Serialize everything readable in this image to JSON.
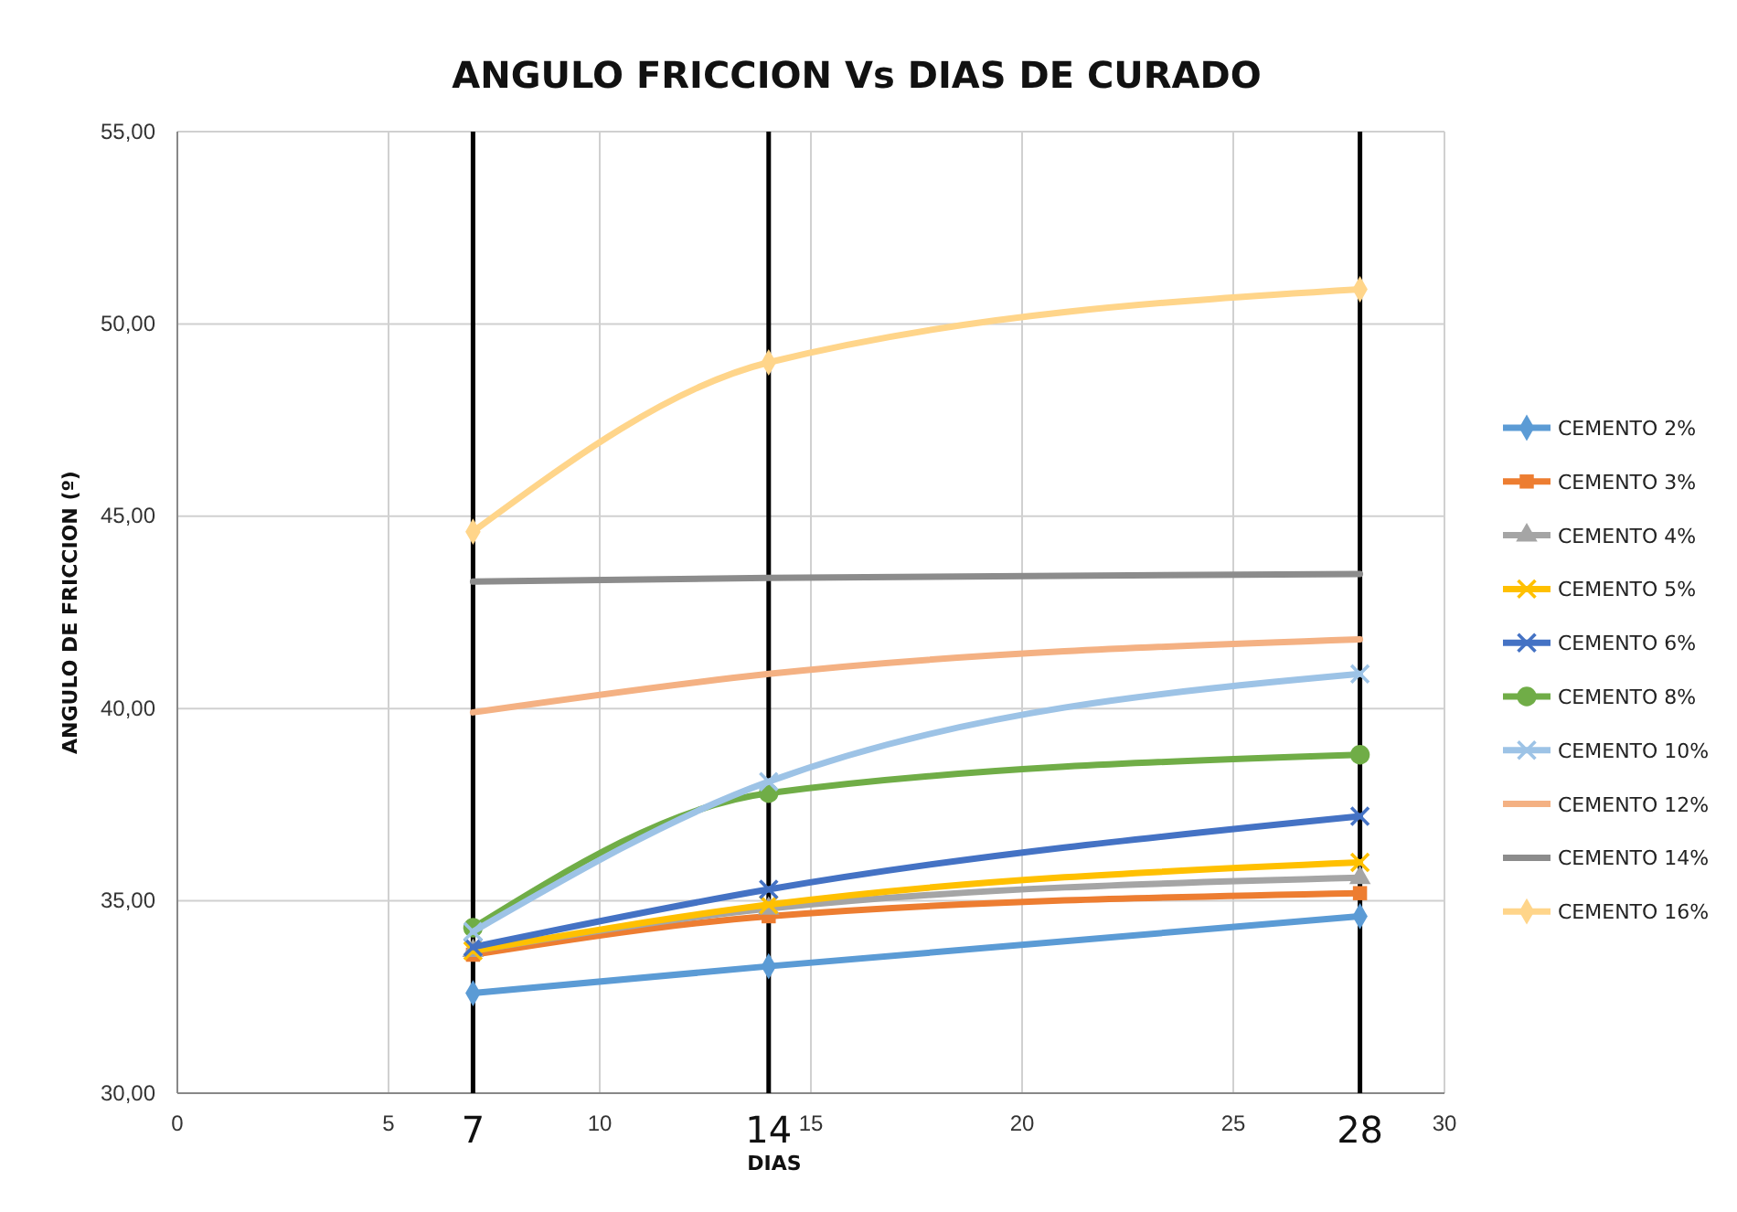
{
  "chart_data": {
    "type": "line",
    "title": "ANGULO FRICCION Vs DIAS DE CURADO",
    "xlabel": "DIAS",
    "ylabel": "ANGULO DE FRICCION (º)",
    "x": [
      7,
      14,
      28
    ],
    "series": [
      {
        "name": "CEMENTO 2%",
        "color": "#5b9bd5",
        "marker": "diamond",
        "values": [
          32.6,
          33.3,
          34.6
        ]
      },
      {
        "name": "CEMENTO 3%",
        "color": "#ed7d31",
        "marker": "square",
        "values": [
          33.6,
          34.6,
          35.2
        ]
      },
      {
        "name": "CEMENTO 4%",
        "color": "#a5a5a5",
        "marker": "triangle",
        "values": [
          33.7,
          34.8,
          35.6
        ]
      },
      {
        "name": "CEMENTO 5%",
        "color": "#ffc000",
        "marker": "cross",
        "values": [
          33.7,
          34.9,
          36.0
        ]
      },
      {
        "name": "CEMENTO 6%",
        "color": "#4472c4",
        "marker": "cross",
        "values": [
          33.8,
          35.3,
          37.2
        ]
      },
      {
        "name": "CEMENTO 8%",
        "color": "#70ad47",
        "marker": "circle",
        "values": [
          34.3,
          37.8,
          38.8
        ]
      },
      {
        "name": "CEMENTO 10%",
        "color": "#9dc3e6",
        "marker": "cross",
        "values": [
          34.2,
          38.1,
          40.9
        ]
      },
      {
        "name": "CEMENTO 12%",
        "color": "#f4b183",
        "marker": "none",
        "values": [
          39.9,
          40.9,
          41.8
        ]
      },
      {
        "name": "CEMENTO 14%",
        "color": "#8c8c8c",
        "marker": "none",
        "values": [
          43.3,
          43.4,
          43.5
        ]
      },
      {
        "name": "CEMENTO 16%",
        "color": "#ffd58a",
        "marker": "diamond",
        "values": [
          44.6,
          49.0,
          50.9
        ]
      }
    ],
    "xlim": [
      0,
      30
    ],
    "xticks": [
      0,
      5,
      10,
      15,
      20,
      25,
      30
    ],
    "ylim": [
      30,
      55
    ],
    "yticks": [
      {
        "value": 30,
        "label": "30,00"
      },
      {
        "value": 35,
        "label": "35,00"
      },
      {
        "value": 40,
        "label": "40,00"
      },
      {
        "value": 45,
        "label": "45,00"
      },
      {
        "value": 50,
        "label": "50,00"
      },
      {
        "value": 55,
        "label": "55,00"
      }
    ],
    "ref_lines": [
      {
        "axis": "x",
        "value": 7,
        "label": "7",
        "color": "#000000"
      },
      {
        "axis": "x",
        "value": 14,
        "label": "14",
        "color": "#000000"
      },
      {
        "axis": "x",
        "value": 28,
        "label": "28",
        "color": "#000000"
      }
    ],
    "grid": true,
    "legend": "right",
    "line_style": "solid"
  }
}
